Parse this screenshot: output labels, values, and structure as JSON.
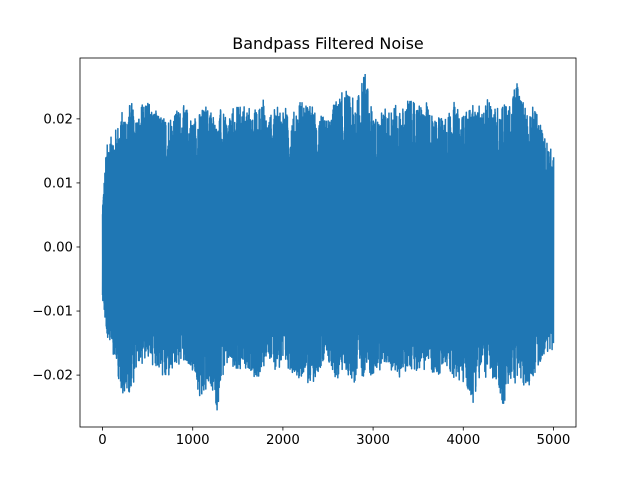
{
  "chart_data": {
    "type": "line",
    "title": "Bandpass Filtered Noise",
    "xlabel": "",
    "ylabel": "",
    "xlim": [
      -250,
      5250
    ],
    "ylim": [
      -0.0281,
      0.0295
    ],
    "x_ticks": [
      0,
      1000,
      2000,
      3000,
      4000,
      5000
    ],
    "x_tick_labels": [
      "0",
      "1000",
      "2000",
      "3000",
      "4000",
      "5000"
    ],
    "y_ticks": [
      -0.02,
      -0.01,
      0.0,
      0.01,
      0.02
    ],
    "y_tick_labels": [
      "−0.02",
      "−0.01",
      "0.00",
      "0.01",
      "0.02"
    ],
    "grid": false,
    "legend": "none",
    "series": [
      {
        "color": "#1f77b4",
        "n_samples": 5000,
        "x_start": 0,
        "x_end": 4999,
        "envelope_x": [
          0,
          50,
          100,
          200,
          300,
          400,
          500,
          600,
          700,
          800,
          900,
          1000,
          1100,
          1200,
          1270,
          1300,
          1400,
          1500,
          1600,
          1700,
          1780,
          1800,
          1900,
          2000,
          2100,
          2200,
          2300,
          2400,
          2500,
          2600,
          2700,
          2800,
          2910,
          3000,
          3100,
          3200,
          3300,
          3400,
          3500,
          3600,
          3700,
          3800,
          3900,
          4000,
          4100,
          4200,
          4300,
          4400,
          4460,
          4500,
          4600,
          4700,
          4800,
          4900,
          5000
        ],
        "envelope_max": [
          0.0065,
          0.016,
          0.016,
          0.019,
          0.021,
          0.02,
          0.0225,
          0.02,
          0.019,
          0.02,
          0.021,
          0.019,
          0.02,
          0.021,
          0.018,
          0.02,
          0.019,
          0.021,
          0.021,
          0.02,
          0.023,
          0.019,
          0.02,
          0.021,
          0.019,
          0.022,
          0.021,
          0.019,
          0.019,
          0.022,
          0.023,
          0.021,
          0.027,
          0.019,
          0.02,
          0.021,
          0.02,
          0.022,
          0.021,
          0.021,
          0.019,
          0.02,
          0.021,
          0.019,
          0.021,
          0.02,
          0.022,
          0.02,
          0.022,
          0.02,
          0.025,
          0.02,
          0.021,
          0.016,
          0.014
        ],
        "envelope_min": [
          -0.0075,
          -0.0135,
          -0.014,
          -0.021,
          -0.022,
          -0.017,
          -0.016,
          -0.017,
          -0.02,
          -0.018,
          -0.016,
          -0.019,
          -0.023,
          -0.02,
          -0.0255,
          -0.02,
          -0.017,
          -0.019,
          -0.017,
          -0.02,
          -0.018,
          -0.016,
          -0.018,
          -0.017,
          -0.018,
          -0.019,
          -0.02,
          -0.018,
          -0.017,
          -0.019,
          -0.018,
          -0.02,
          -0.018,
          -0.019,
          -0.017,
          -0.018,
          -0.019,
          -0.017,
          -0.018,
          -0.017,
          -0.019,
          -0.018,
          -0.019,
          -0.02,
          -0.023,
          -0.018,
          -0.019,
          -0.022,
          -0.024,
          -0.02,
          -0.019,
          -0.021,
          -0.018,
          -0.016,
          -0.015
        ]
      }
    ]
  }
}
